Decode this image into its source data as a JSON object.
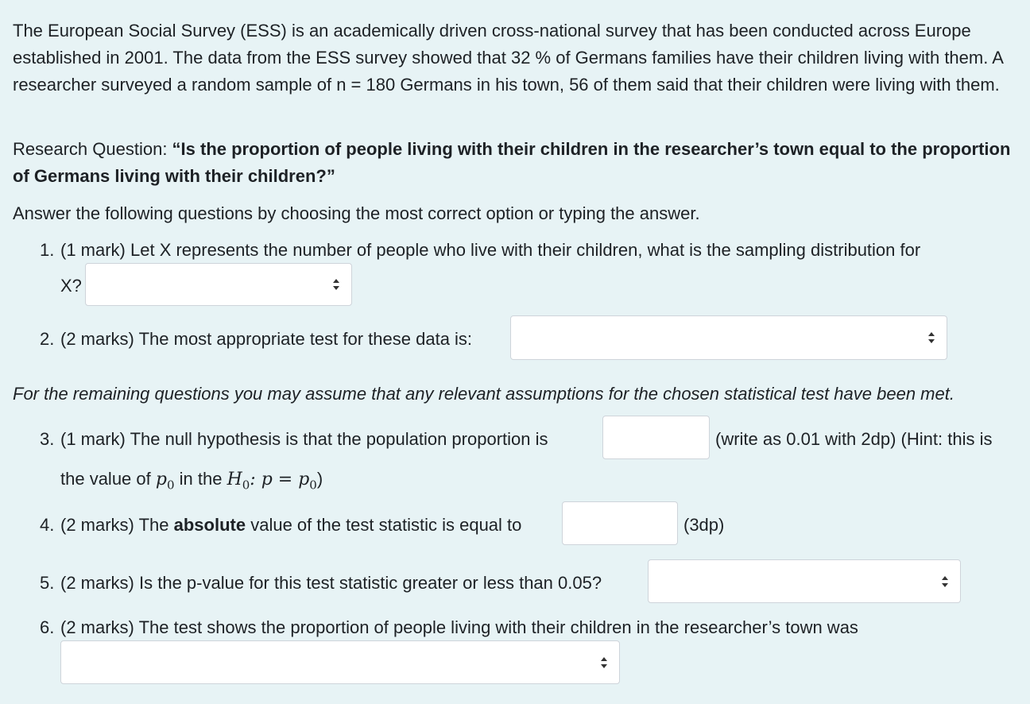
{
  "intro": "The European Social Survey (ESS) is an academically driven cross-national survey that has been conducted across Europe established in 2001. The data from the ESS survey showed that 32 % of Germans families have their children living with them. A researcher surveyed a random sample of n = 180 Germans in his town, 56 of them said that their children were living with them.",
  "research_question": {
    "label": "Research Question: ",
    "text": "“Is the proportion of people living with their children in the researcher’s town equal to the proportion of Germans living with their children?”"
  },
  "instruction": "Answer the following questions by choosing the most correct option or typing the answer.",
  "q1": {
    "num": "1.",
    "text": "(1 mark) Let X represents the number of people who live with their children, what is the sampling distribution for",
    "cont": "X?",
    "selected": ""
  },
  "q2": {
    "num": "2.",
    "text": "(2 marks) The most appropriate test for these data is:",
    "selected": ""
  },
  "assumption_note": "For the remaining questions you may assume that any relevant assumptions for the chosen statistical test have been met.",
  "q3": {
    "num": "3.",
    "text": "(1 mark) The null hypothesis is that the population proportion is",
    "after": "(write as 0.01 with 2dp) (Hint: this is",
    "cont_a": "the value of ",
    "p0": "p",
    "sub0": "0",
    "cont_b": " in the ",
    "h": "H",
    "hsub": "0",
    "eq": ": p = p",
    "eqsub": "0",
    "close": ")",
    "value": ""
  },
  "q4": {
    "num": "4.",
    "text_a": "(2 marks) The ",
    "bold": "absolute",
    "text_b": " value of the test statistic is equal to",
    "after": "(3dp)",
    "value": ""
  },
  "q5": {
    "num": "5.",
    "text": "(2 marks) Is the p-value for this test statistic greater or less than 0.05?",
    "selected": ""
  },
  "q6": {
    "num": "6.",
    "text": "(2 marks) The test shows the proportion of people living with their children in the researcher’s town was",
    "selected": ""
  }
}
